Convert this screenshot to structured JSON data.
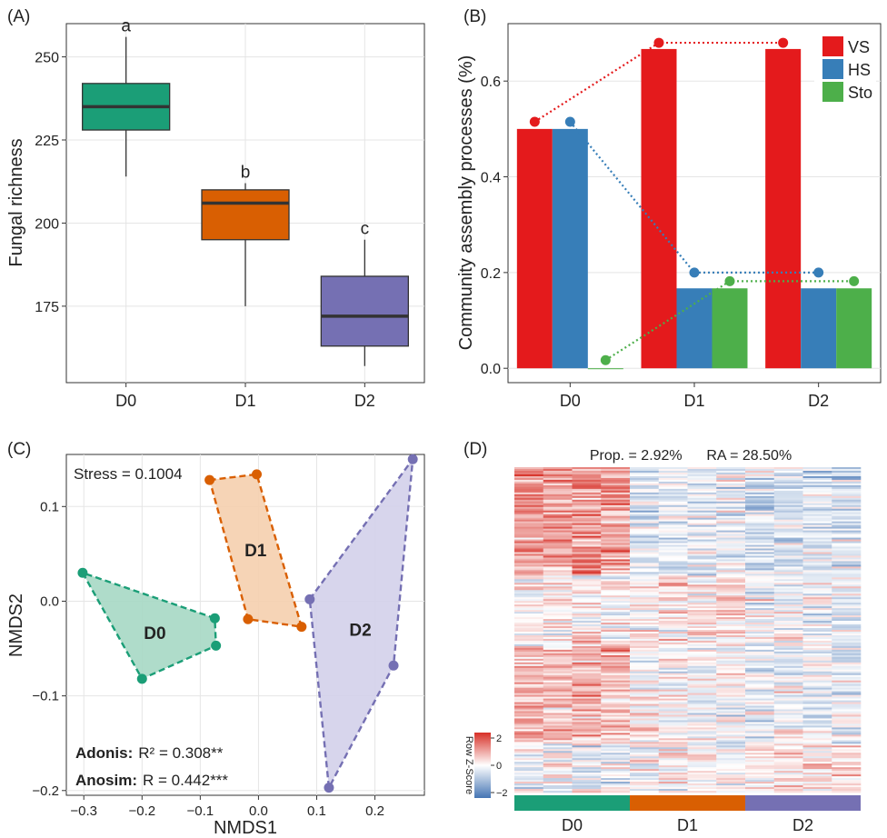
{
  "chart_data": [
    {
      "panel": "(A)",
      "type": "box",
      "ylabel": "Fungal richness",
      "ylim": [
        152,
        260
      ],
      "yticks": [
        175,
        200,
        225,
        250
      ],
      "categories": [
        "D0",
        "D1",
        "D2"
      ],
      "colors": [
        "#1b9e77",
        "#d95f02",
        "#7570b3"
      ],
      "boxes": [
        {
          "min": 214,
          "q1": 228,
          "median": 235,
          "q3": 242,
          "max": 256,
          "label": "a"
        },
        {
          "min": 175,
          "q1": 195,
          "median": 206,
          "q3": 210,
          "max": 212,
          "label": "b"
        },
        {
          "min": 157,
          "q1": 163,
          "median": 172,
          "q3": 184,
          "max": 195,
          "label": "c"
        }
      ]
    },
    {
      "panel": "(B)",
      "type": "bar",
      "ylabel": "Community assembly processes (%)",
      "ylim": [
        -0.03,
        0.72
      ],
      "yticks": [
        0.0,
        0.2,
        0.4,
        0.6
      ],
      "categories": [
        "D0",
        "D1",
        "D2"
      ],
      "series": [
        {
          "name": "VS",
          "color": "#e41a1c",
          "values": [
            0.5,
            0.667,
            0.667
          ],
          "points": [
            0.515,
            0.68,
            0.68
          ]
        },
        {
          "name": "HS",
          "color": "#377eb8",
          "values": [
            0.5,
            0.167,
            0.167
          ],
          "points": [
            0.515,
            0.2,
            0.2
          ]
        },
        {
          "name": "Sto",
          "color": "#4daf4a",
          "values": [
            0.0,
            0.167,
            0.167
          ],
          "points": [
            0.017,
            0.182,
            0.182
          ]
        }
      ]
    },
    {
      "panel": "(C)",
      "type": "scatter",
      "xlabel": "NMDS1",
      "ylabel": "NMDS2",
      "xlim": [
        -0.33,
        0.285
      ],
      "ylim": [
        -0.205,
        0.155
      ],
      "xticks": [
        -0.3,
        -0.2,
        -0.1,
        0.0,
        0.1,
        0.2
      ],
      "yticks": [
        -0.2,
        -0.1,
        0.0,
        0.1
      ],
      "stress": "Stress = 0.1004",
      "adonis": {
        "label": "Adonis:",
        "value": "R² = 0.308**"
      },
      "anosim": {
        "label": "Anosim:",
        "value": "R = 0.442***"
      },
      "groups": [
        {
          "name": "D0",
          "color": "#1b9e77",
          "fill": "#a6d8c4",
          "centroid": [
            -0.178,
            -0.033
          ],
          "points": [
            [
              -0.302,
              0.03
            ],
            [
              -0.2,
              -0.082
            ],
            [
              -0.073,
              -0.047
            ],
            [
              -0.075,
              -0.018
            ]
          ]
        },
        {
          "name": "D1",
          "color": "#d95f02",
          "fill": "#f5cfae",
          "centroid": [
            -0.005,
            0.054
          ],
          "points": [
            [
              -0.084,
              0.128
            ],
            [
              -0.003,
              0.134
            ],
            [
              0.074,
              -0.027
            ],
            [
              -0.018,
              -0.019
            ]
          ]
        },
        {
          "name": "D2",
          "color": "#7570b3",
          "fill": "#d3d0ea",
          "centroid": [
            0.175,
            -0.03
          ],
          "points": [
            [
              0.088,
              0.002
            ],
            [
              0.265,
              0.15
            ],
            [
              0.232,
              -0.068
            ],
            [
              0.121,
              -0.197
            ]
          ]
        }
      ]
    },
    {
      "panel": "(D)",
      "type": "heatmap",
      "annotation": "Prop. = 2.92%      RA = 28.50%",
      "legend_title": "Row Z-Score",
      "legend_ticks": [
        "2",
        "0",
        "−2"
      ],
      "legend_values": [
        2,
        0,
        -2
      ],
      "colors": {
        "high": "#d73027",
        "mid": "#ffffff",
        "low": "#4575b4"
      },
      "groups": [
        {
          "name": "D0",
          "color": "#1b9e77"
        },
        {
          "name": "D1",
          "color": "#d95f02"
        },
        {
          "name": "D2",
          "color": "#7570b3"
        }
      ]
    }
  ]
}
